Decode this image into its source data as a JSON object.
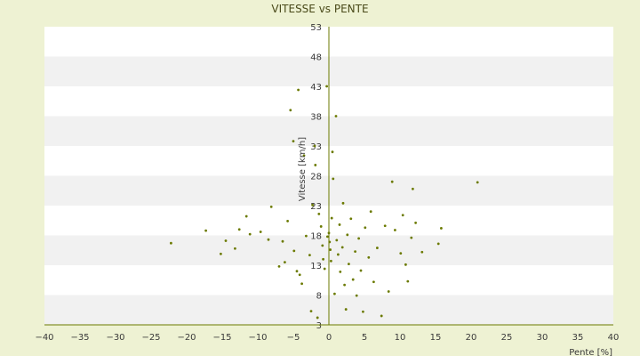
{
  "chart_data": {
    "type": "scatter",
    "title": "VITESSE vs PENTE",
    "xlabel": "Pente [%]",
    "ylabel": "Vitesse [km/h]",
    "xlim": [
      -40,
      40
    ],
    "ylim": [
      3,
      53
    ],
    "xticks": [
      -40,
      -35,
      -30,
      -25,
      -20,
      -15,
      -10,
      -5,
      0,
      5,
      10,
      15,
      20,
      25,
      30,
      35,
      40
    ],
    "yticks": [
      3,
      8,
      13,
      18,
      23,
      28,
      33,
      38,
      43,
      48,
      53
    ],
    "grid": "alternating horizontal bands",
    "colors": {
      "background": "#eef2d3",
      "band_white": "#ffffff",
      "band_gray": "#f1f1f1",
      "point": "#6b7a00",
      "axis": "#6b7a00"
    },
    "series": [
      {
        "points": [
          [
            -22.2,
            16.7
          ],
          [
            -17.3,
            18.8
          ],
          [
            -15.2,
            14.9
          ],
          [
            -14.5,
            17.1
          ],
          [
            -13.2,
            15.8
          ],
          [
            -12.6,
            19.0
          ],
          [
            -11.6,
            21.2
          ],
          [
            -11.1,
            18.2
          ],
          [
            -9.6,
            18.6
          ],
          [
            -8.1,
            22.8
          ],
          [
            -8.5,
            17.3
          ],
          [
            -7.0,
            12.8
          ],
          [
            -6.5,
            17.0
          ],
          [
            -6.2,
            13.5
          ],
          [
            -5.8,
            20.4
          ],
          [
            -5.4,
            39.0
          ],
          [
            -5.0,
            33.8
          ],
          [
            -4.9,
            15.4
          ],
          [
            -4.5,
            12.0
          ],
          [
            -4.1,
            11.4
          ],
          [
            -4.3,
            42.4
          ],
          [
            -3.8,
            9.9
          ],
          [
            -3.5,
            31.4
          ],
          [
            -3.2,
            17.9
          ],
          [
            -2.7,
            14.7
          ],
          [
            -2.3,
            23.1
          ],
          [
            -2.5,
            5.3
          ],
          [
            -2.0,
            33.0
          ],
          [
            -1.9,
            29.8
          ],
          [
            -1.6,
            4.2
          ],
          [
            -1.4,
            21.6
          ],
          [
            -1.1,
            19.5
          ],
          [
            -0.9,
            16.3
          ],
          [
            -0.8,
            14.0
          ],
          [
            -0.6,
            12.4
          ],
          [
            -0.3,
            43.0
          ],
          [
            -0.2,
            17.8
          ],
          [
            0.0,
            18.4
          ],
          [
            0.1,
            16.9
          ],
          [
            0.2,
            15.6
          ],
          [
            0.3,
            13.7
          ],
          [
            0.4,
            20.9
          ],
          [
            0.5,
            32.0
          ],
          [
            0.6,
            27.5
          ],
          [
            0.8,
            8.2
          ],
          [
            1.0,
            38.0
          ],
          [
            1.1,
            17.2
          ],
          [
            1.3,
            14.8
          ],
          [
            1.5,
            19.8
          ],
          [
            1.6,
            11.9
          ],
          [
            1.9,
            16.0
          ],
          [
            2.0,
            23.4
          ],
          [
            2.2,
            9.7
          ],
          [
            2.4,
            5.6
          ],
          [
            2.6,
            18.1
          ],
          [
            2.8,
            13.2
          ],
          [
            3.1,
            20.8
          ],
          [
            3.4,
            10.6
          ],
          [
            3.7,
            15.3
          ],
          [
            3.9,
            7.9
          ],
          [
            4.2,
            17.5
          ],
          [
            4.5,
            12.1
          ],
          [
            4.8,
            5.2
          ],
          [
            5.1,
            19.3
          ],
          [
            5.6,
            14.3
          ],
          [
            5.9,
            22.0
          ],
          [
            6.3,
            10.2
          ],
          [
            6.8,
            15.9
          ],
          [
            7.4,
            4.5
          ],
          [
            7.9,
            19.6
          ],
          [
            8.4,
            8.6
          ],
          [
            8.9,
            27.0
          ],
          [
            9.3,
            18.9
          ],
          [
            10.1,
            15.0
          ],
          [
            10.4,
            21.4
          ],
          [
            10.8,
            13.1
          ],
          [
            11.1,
            10.3
          ],
          [
            11.6,
            17.6
          ],
          [
            11.8,
            25.8
          ],
          [
            12.2,
            20.1
          ],
          [
            13.1,
            15.2
          ],
          [
            15.4,
            16.6
          ],
          [
            15.8,
            19.2
          ],
          [
            20.9,
            26.9
          ]
        ]
      }
    ]
  }
}
